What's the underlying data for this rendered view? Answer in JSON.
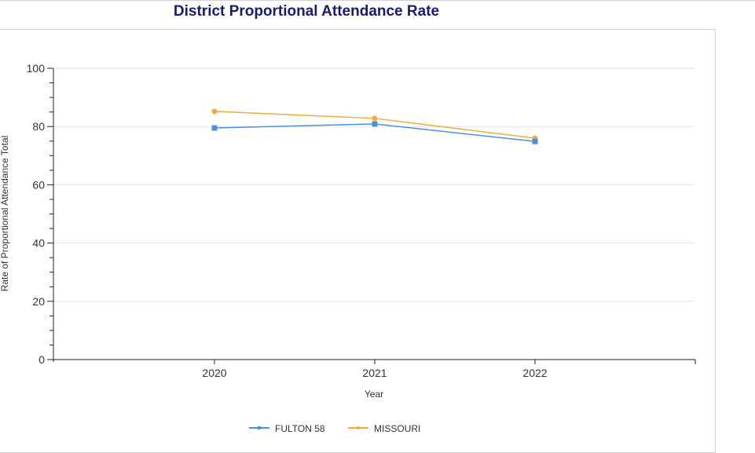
{
  "chart_data": {
    "type": "line",
    "title": "District Proportional Attendance Rate",
    "xlabel": "Year",
    "ylabel": "Rate of Proportional Attendance Total",
    "categories": [
      "2020",
      "2021",
      "2022"
    ],
    "ylim": [
      0,
      100
    ],
    "yticks": [
      "0",
      "20",
      "40",
      "60",
      "80",
      "100"
    ],
    "grid": true,
    "legend_position": "bottom",
    "series": [
      {
        "name": "FULTON 58",
        "color": "#4a90e2",
        "marker": "square",
        "values": [
          79.5,
          80.9,
          74.9
        ]
      },
      {
        "name": "MISSOURI",
        "color": "#f5a93a",
        "marker": "circle",
        "values": [
          85.2,
          82.8,
          76.0
        ]
      }
    ]
  }
}
